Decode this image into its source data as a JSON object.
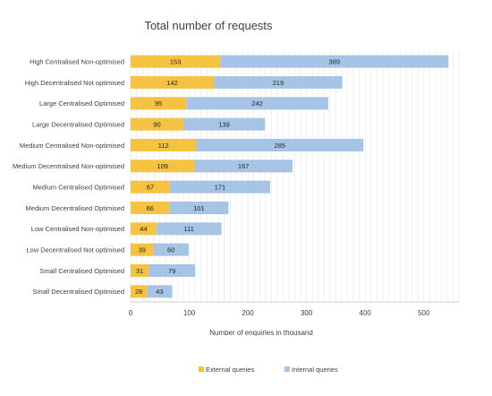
{
  "chart_data": {
    "type": "bar",
    "orientation": "horizontal",
    "stacked": true,
    "title": "Total number of requests",
    "xlabel": "Number of enquiries in thousand",
    "ylabel": "",
    "xlim": [
      0,
      560
    ],
    "xticks": [
      0,
      100,
      200,
      300,
      400,
      500
    ],
    "grid": true,
    "legend_position": "bottom",
    "categories": [
      "High Centralised Non-optimised",
      "High Decentralised Not optimised",
      "Large Centralised Optimised",
      "Large Decentralised Optimised",
      "Medium Centralised Non-optimised",
      "Medium Decentralised Non-optimised",
      "Medium Centralised Optimised",
      "Medium Decentralised Optimised",
      "Low Centralised Non-optimised",
      "Low Decentralised Not optimised",
      "Small Centralised Optimised",
      "Small Decentralised Optimised"
    ],
    "series": [
      {
        "name": "External queries",
        "color": "#F5C242",
        "values": [
          153,
          142,
          95,
          90,
          112,
          109,
          67,
          66,
          44,
          39,
          31,
          28
        ]
      },
      {
        "name": "Internal queries",
        "color": "#A6C4E6",
        "values": [
          389,
          219,
          242,
          139,
          285,
          167,
          171,
          101,
          111,
          60,
          79,
          43
        ]
      }
    ]
  }
}
